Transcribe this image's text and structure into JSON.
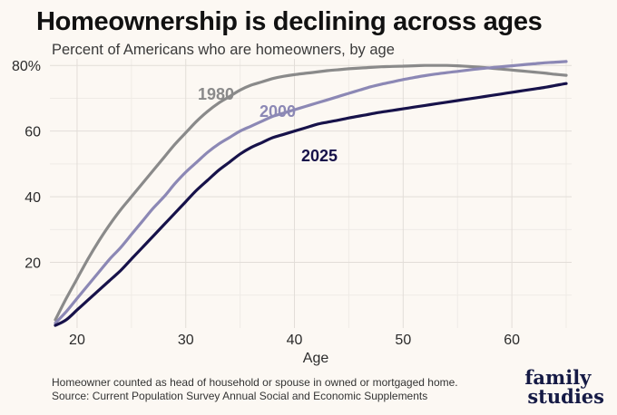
{
  "header": {
    "title": "Homeownership is declining across ages",
    "subtitle": "Percent of Americans who are homeowners, by age"
  },
  "footer": {
    "note": "Homeowner counted as head of household or spouse in owned or mortgaged home.",
    "source": "Source: Current Population Survey Annual Social and Economic Supplements"
  },
  "logo": {
    "line1": "family",
    "line2": "studies"
  },
  "chart_data": {
    "type": "line",
    "title": "Homeownership is declining across ages",
    "subtitle": "Percent of Americans who are homeowners, by age",
    "xlabel": "Age",
    "ylabel": "",
    "xlim": [
      17.5,
      65.5
    ],
    "ylim": [
      0,
      82
    ],
    "x_ticks": [
      20,
      30,
      40,
      50,
      60
    ],
    "x_tick_labels": [
      "20",
      "30",
      "40",
      "50",
      "60"
    ],
    "y_ticks": [
      20,
      40,
      60,
      80
    ],
    "y_tick_labels": [
      "20",
      "40",
      "60",
      "80%"
    ],
    "grid": true,
    "legend": "direct labels on lines",
    "x": [
      18,
      19,
      20,
      21,
      22,
      23,
      24,
      25,
      26,
      27,
      28,
      29,
      30,
      31,
      32,
      33,
      34,
      35,
      36,
      37,
      38,
      39,
      40,
      41,
      42,
      43,
      44,
      45,
      46,
      47,
      48,
      49,
      50,
      51,
      52,
      53,
      54,
      55,
      56,
      57,
      58,
      59,
      60,
      61,
      62,
      63,
      64,
      65
    ],
    "series": [
      {
        "name": "1980",
        "color": "#8a8a8a",
        "values": [
          2.5,
          9,
          15,
          21,
          26.5,
          31.5,
          36,
          40,
          44,
          48,
          52,
          56,
          59.5,
          63,
          66,
          68.5,
          70.5,
          72.5,
          74,
          75,
          76,
          76.7,
          77.2,
          77.6,
          78,
          78.4,
          78.7,
          79,
          79.2,
          79.4,
          79.6,
          79.7,
          79.8,
          79.9,
          80,
          80,
          80,
          79.9,
          79.7,
          79.5,
          79.2,
          78.9,
          78.6,
          78.3,
          78,
          77.7,
          77.3,
          77
        ]
      },
      {
        "name": "2000",
        "color": "#8c88b5",
        "values": [
          1.5,
          5,
          9,
          13,
          17,
          21,
          24.5,
          28.5,
          32.5,
          36.5,
          40,
          44,
          47.5,
          50.5,
          53.5,
          56,
          58,
          60,
          61.5,
          63,
          64.5,
          65.5,
          66.5,
          67.5,
          68.5,
          69.5,
          70.5,
          71.5,
          72.5,
          73.5,
          74.3,
          75,
          75.7,
          76.3,
          76.9,
          77.4,
          77.8,
          78.2,
          78.6,
          79,
          79.3,
          79.6,
          79.9,
          80.2,
          80.5,
          80.8,
          81,
          81.2
        ]
      },
      {
        "name": "2025",
        "color": "#17124a",
        "values": [
          0.8,
          2.5,
          5.5,
          8.5,
          11.5,
          14.5,
          17.5,
          21,
          24.5,
          28,
          31.5,
          35,
          38.5,
          42,
          45,
          48,
          50.5,
          53,
          55,
          56.5,
          58,
          59,
          60,
          61,
          62,
          62.7,
          63.3,
          64,
          64.6,
          65.2,
          65.8,
          66.3,
          66.8,
          67.3,
          67.8,
          68.3,
          68.8,
          69.3,
          69.8,
          70.3,
          70.8,
          71.3,
          71.8,
          72.3,
          72.8,
          73.3,
          73.9,
          74.5
        ]
      }
    ],
    "annotations": [
      {
        "text": "1980",
        "series": "1980"
      },
      {
        "text": "2000",
        "series": "2000"
      },
      {
        "text": "2025",
        "series": "2025"
      }
    ]
  }
}
